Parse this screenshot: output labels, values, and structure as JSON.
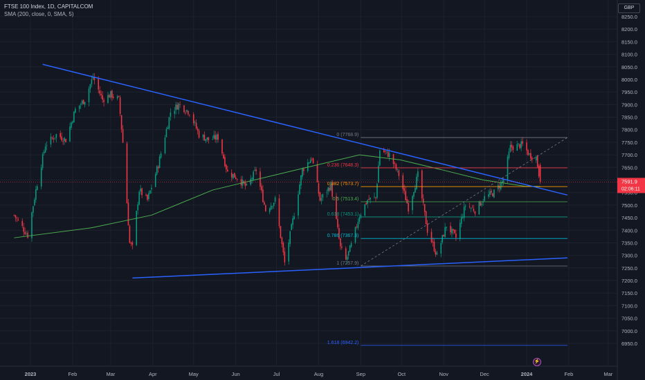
{
  "header": {
    "line1": "FTSE 100 Index, 1D, CAPITALCOM",
    "line2": "SMA (200, close, 0, SMA, 5)",
    "currency": "GBP"
  },
  "chart_data": {
    "type": "candlestick",
    "title": "FTSE 100 Index, 1D, CAPITALCOM",
    "currency": "GBP",
    "y_range": [
      6900,
      8300
    ],
    "y_ticks": [
      8250,
      8200,
      8150,
      8100,
      8050,
      8000,
      7950,
      7900,
      7850,
      7800,
      7750,
      7700,
      7650,
      7600,
      7550,
      7500,
      7450,
      7400,
      7350,
      7300,
      7250,
      7200,
      7150,
      7100,
      7050,
      7000,
      6950
    ],
    "x_ticks": [
      "2023",
      "Feb",
      "Mar",
      "Apr",
      "May",
      "Jun",
      "Jul",
      "Aug",
      "Sep",
      "Oct",
      "Nov",
      "Dec",
      "2024",
      "Feb",
      "Mar"
    ],
    "x_tick_dates": [
      "2023-01-01",
      "2023-02-01",
      "2023-03-01",
      "2023-04-01",
      "2023-05-01",
      "2023-06-01",
      "2023-07-01",
      "2023-08-01",
      "2023-09-01",
      "2023-10-01",
      "2023-11-01",
      "2023-12-01",
      "2024-01-01",
      "2024-02-01",
      "2024-03-01"
    ],
    "price_path": [
      [
        "2022-12-20",
        7460
      ],
      [
        "2022-12-30",
        7380
      ],
      [
        "2023-01-05",
        7560
      ],
      [
        "2023-01-12",
        7740
      ],
      [
        "2023-01-20",
        7780
      ],
      [
        "2023-01-27",
        7760
      ],
      [
        "2023-02-03",
        7880
      ],
      [
        "2023-02-10",
        7920
      ],
      [
        "2023-02-16",
        8010
      ],
      [
        "2023-02-23",
        7920
      ],
      [
        "2023-03-01",
        7940
      ],
      [
        "2023-03-07",
        7920
      ],
      [
        "2023-03-10",
        7750
      ],
      [
        "2023-03-15",
        7350
      ],
      [
        "2023-03-17",
        7330
      ],
      [
        "2023-03-22",
        7560
      ],
      [
        "2023-03-28",
        7520
      ],
      [
        "2023-04-05",
        7660
      ],
      [
        "2023-04-14",
        7870
      ],
      [
        "2023-04-20",
        7900
      ],
      [
        "2023-04-28",
        7870
      ],
      [
        "2023-05-05",
        7780
      ],
      [
        "2023-05-12",
        7760
      ],
      [
        "2023-05-19",
        7770
      ],
      [
        "2023-05-26",
        7630
      ],
      [
        "2023-06-02",
        7610
      ],
      [
        "2023-06-09",
        7570
      ],
      [
        "2023-06-16",
        7640
      ],
      [
        "2023-06-23",
        7480
      ],
      [
        "2023-06-30",
        7520
      ],
      [
        "2023-07-07",
        7270
      ],
      [
        "2023-07-12",
        7410
      ],
      [
        "2023-07-20",
        7640
      ],
      [
        "2023-07-27",
        7690
      ],
      [
        "2023-08-02",
        7520
      ],
      [
        "2023-08-10",
        7580
      ],
      [
        "2023-08-17",
        7330
      ],
      [
        "2023-08-21",
        7280
      ],
      [
        "2023-08-25",
        7340
      ],
      [
        "2023-08-31",
        7460
      ],
      [
        "2023-09-06",
        7520
      ],
      [
        "2023-09-12",
        7530
      ],
      [
        "2023-09-15",
        7720
      ],
      [
        "2023-09-22",
        7700
      ],
      [
        "2023-09-29",
        7620
      ],
      [
        "2023-10-06",
        7490
      ],
      [
        "2023-10-13",
        7620
      ],
      [
        "2023-10-20",
        7400
      ],
      [
        "2023-10-27",
        7300
      ],
      [
        "2023-11-03",
        7420
      ],
      [
        "2023-11-10",
        7370
      ],
      [
        "2023-11-17",
        7500
      ],
      [
        "2023-11-24",
        7480
      ],
      [
        "2023-12-01",
        7530
      ],
      [
        "2023-12-08",
        7550
      ],
      [
        "2023-12-15",
        7600
      ],
      [
        "2023-12-20",
        7730
      ],
      [
        "2023-12-29",
        7740
      ],
      [
        "2024-01-03",
        7700
      ],
      [
        "2024-01-08",
        7690
      ],
      [
        "2024-01-11",
        7592
      ]
    ],
    "sma200": {
      "name": "SMA (200, close, 0, SMA, 5)",
      "color": "#4caf50",
      "points": [
        [
          "2022-12-20",
          7370
        ],
        [
          "2023-02-15",
          7410
        ],
        [
          "2023-03-31",
          7460
        ],
        [
          "2023-05-15",
          7560
        ],
        [
          "2023-06-30",
          7620
        ],
        [
          "2023-07-31",
          7660
        ],
        [
          "2023-08-31",
          7700
        ],
        [
          "2023-09-30",
          7680
        ],
        [
          "2023-10-31",
          7640
        ],
        [
          "2023-11-30",
          7600
        ],
        [
          "2023-12-31",
          7575
        ],
        [
          "2024-01-11",
          7575
        ]
      ]
    },
    "trendlines": [
      {
        "name": "upper",
        "color": "#2962ff",
        "from": [
          "2023-01-10",
          8060
        ],
        "to": [
          "2024-01-31",
          7540
        ]
      },
      {
        "name": "lower",
        "color": "#2962ff",
        "from": [
          "2023-03-17",
          7210
        ],
        "to": [
          "2024-01-31",
          7290
        ]
      }
    ],
    "fib_levels": [
      {
        "label": "0 (7768.9)",
        "value": 7768.9,
        "color": "#787b86"
      },
      {
        "label": "0.236 (7648.3)",
        "value": 7648.3,
        "color": "#f23645"
      },
      {
        "label": "0.382 (7573.7)",
        "value": 7573.7,
        "color": "#ff9800"
      },
      {
        "label": "0.5 (7513.4)",
        "value": 7513.4,
        "color": "#4caf50"
      },
      {
        "label": "0.618 (7453.1)",
        "value": 7453.1,
        "color": "#089981"
      },
      {
        "label": "0.786 (7367.3)",
        "value": 7367.3,
        "color": "#00bcd4"
      },
      {
        "label": "1 (7257.9)",
        "value": 7257.9,
        "color": "#787b86"
      },
      {
        "label": "1.618 (6942.2)",
        "value": 6942.2,
        "color": "#2962ff"
      }
    ],
    "fib_range": {
      "from": "2023-09-01",
      "to": "2024-01-31"
    },
    "last_price": {
      "value": 7591.9,
      "label": "7591.9",
      "countdown": "02:06:11",
      "color": "#f23645"
    }
  }
}
